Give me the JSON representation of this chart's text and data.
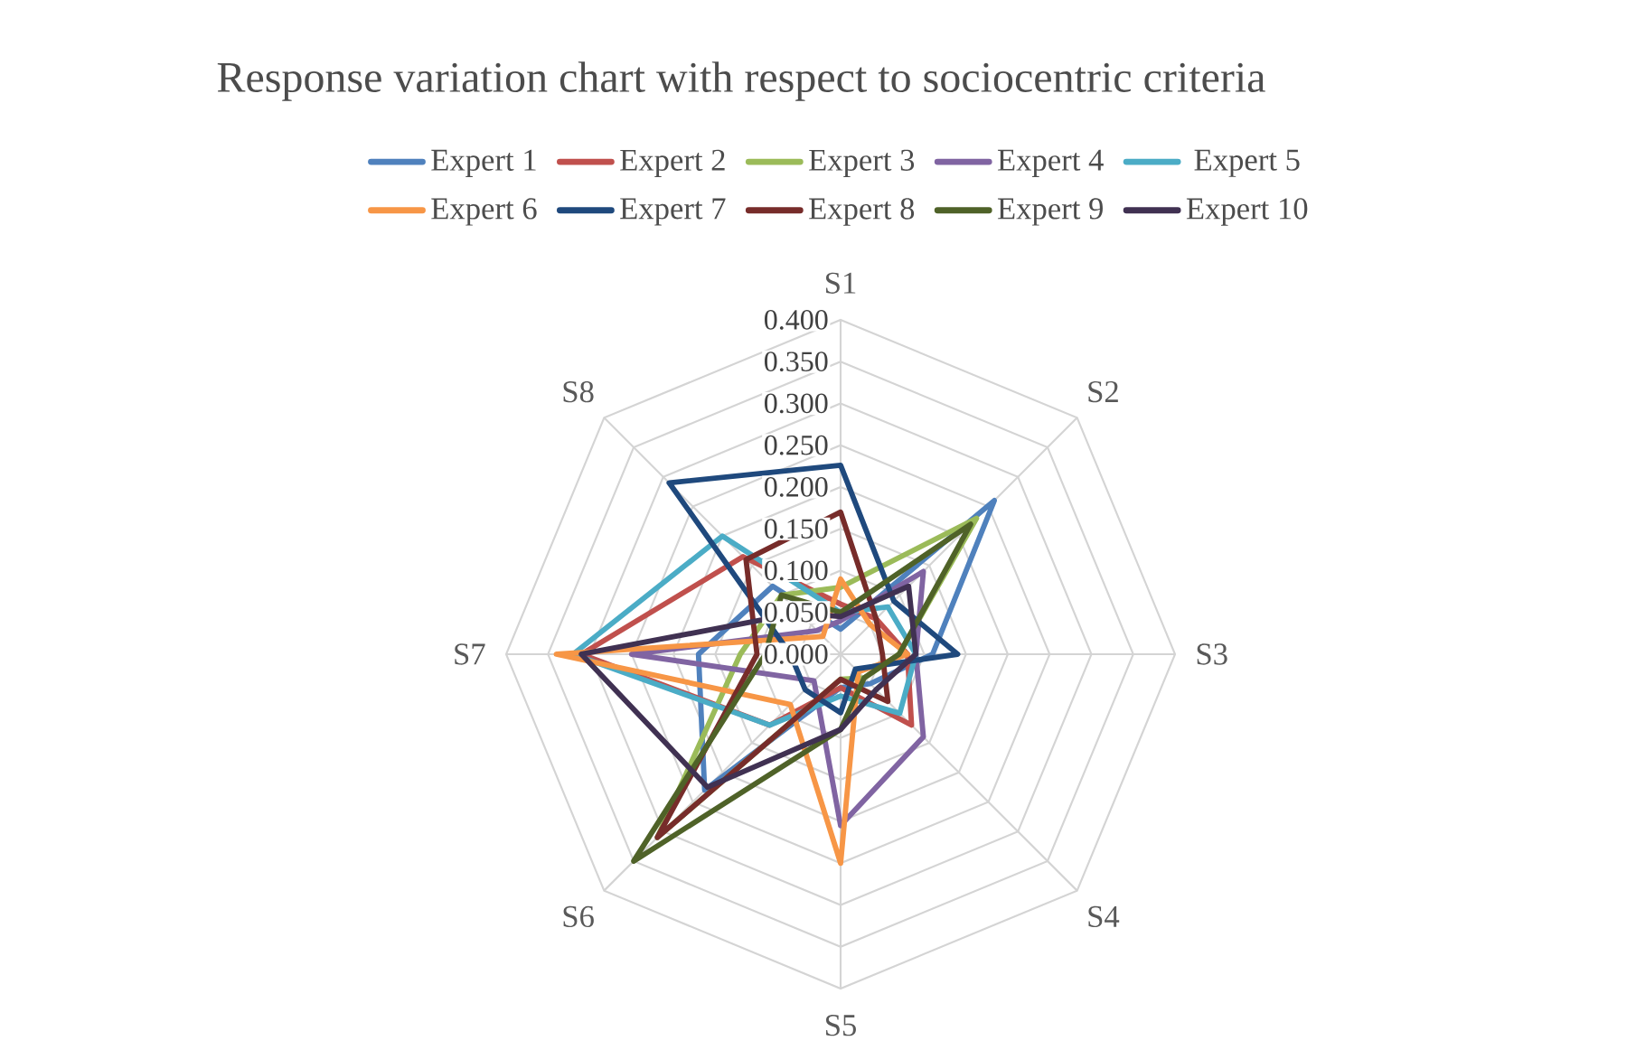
{
  "chart_data": {
    "type": "radar",
    "title": "Response variation chart with respect to sociocentric criteria",
    "categories": [
      "S1",
      "S2",
      "S3",
      "S4",
      "S5",
      "S6",
      "S7",
      "S8"
    ],
    "ylim": [
      0,
      0.4
    ],
    "yticks": [
      {
        "value": 0,
        "label": "0.000"
      },
      {
        "value": 0.05,
        "label": "0.050"
      },
      {
        "value": 0.1,
        "label": "0.100"
      },
      {
        "value": 0.15,
        "label": "0.150"
      },
      {
        "value": 0.2,
        "label": "0.200"
      },
      {
        "value": 0.25,
        "label": "0.250"
      },
      {
        "value": 0.3,
        "label": "0.300"
      },
      {
        "value": 0.35,
        "label": "0.350"
      },
      {
        "value": 0.4,
        "label": "0.400"
      }
    ],
    "grid": true,
    "legend": "top",
    "series": [
      {
        "name": "Expert 1",
        "color": "#4f81bd",
        "values": [
          0.03,
          0.26,
          0.11,
          0.05,
          0.04,
          0.23,
          0.17,
          0.115
        ]
      },
      {
        "name": "Expert 2",
        "color": "#c0504d",
        "values": [
          0.06,
          0.06,
          0.08,
          0.12,
          0.04,
          0.12,
          0.31,
          0.165
        ]
      },
      {
        "name": "Expert 3",
        "color": "#9bbb59",
        "values": [
          0.08,
          0.23,
          0.07,
          0.04,
          0.03,
          0.31,
          0.12,
          0.1
        ]
      },
      {
        "name": "Expert 4",
        "color": "#8064a2",
        "values": [
          0.04,
          0.14,
          0.09,
          0.14,
          0.205,
          0.045,
          0.25,
          0.04
        ]
      },
      {
        "name": "Expert 5",
        "color": "#4bacc6",
        "values": [
          0.05,
          0.08,
          0.09,
          0.1,
          0.05,
          0.12,
          0.32,
          0.2
        ]
      },
      {
        "name": "Expert 6",
        "color": "#f79646",
        "values": [
          0.09,
          0.05,
          0.08,
          0.03,
          0.25,
          0.085,
          0.34,
          0.03
        ]
      },
      {
        "name": "Expert 7",
        "color": "#1f497d",
        "values": [
          0.226,
          0.09,
          0.14,
          0.025,
          0.07,
          0.06,
          0.06,
          0.29
        ]
      },
      {
        "name": "Expert 8",
        "color": "#772c2a",
        "values": [
          0.17,
          0.06,
          0.05,
          0.08,
          0.03,
          0.31,
          0.1,
          0.16
        ]
      },
      {
        "name": "Expert 9",
        "color": "#4f6228",
        "values": [
          0.05,
          0.22,
          0.07,
          0.04,
          0.09,
          0.35,
          0.09,
          0.1
        ]
      },
      {
        "name": "Expert 10",
        "color": "#403152",
        "values": [
          0.045,
          0.115,
          0.09,
          0.06,
          0.09,
          0.225,
          0.31,
          0.07
        ]
      }
    ]
  }
}
